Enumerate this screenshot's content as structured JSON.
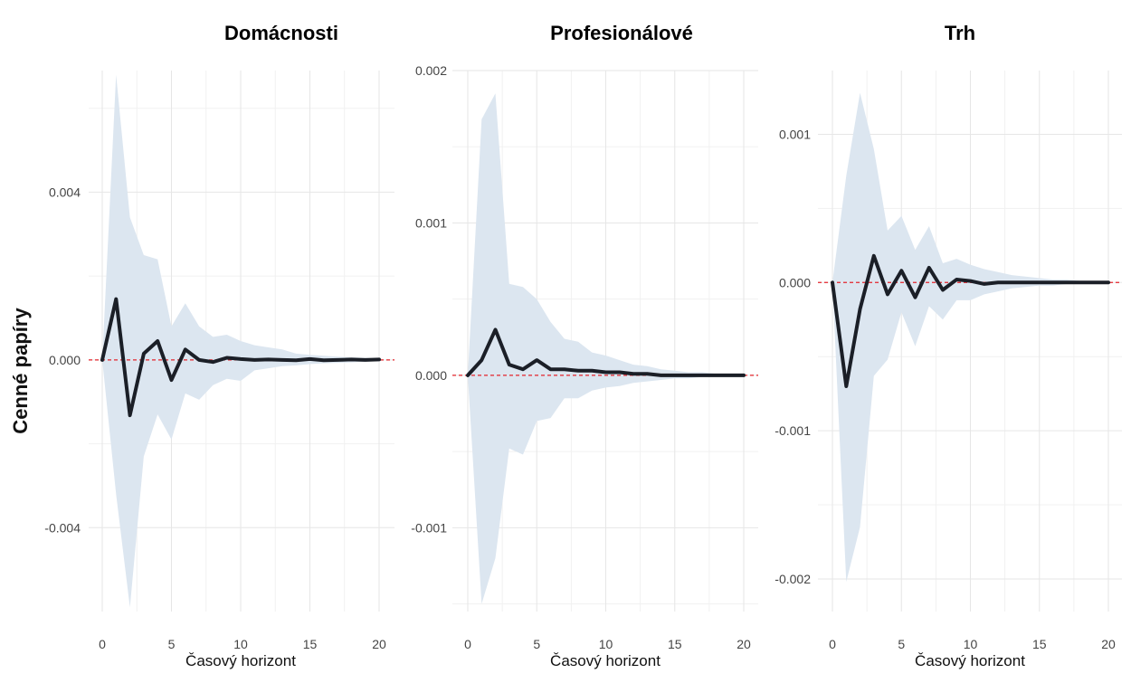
{
  "y_axis_title": "Cenné papíry",
  "chart_data": [
    {
      "type": "line",
      "title": "Domácnosti",
      "xlabel": "Časový horizont",
      "ylabel": "Cenné papíry",
      "xlim": [
        0,
        20
      ],
      "ylim": [
        -0.006,
        0.0069
      ],
      "x_ticks": [
        0,
        5,
        10,
        15,
        20
      ],
      "y_ticks": [
        -0.004,
        0.0,
        0.004
      ],
      "y_tick_labels": [
        "-0.004",
        "0.000",
        "0.004"
      ],
      "reference_line": 0,
      "x": [
        0,
        1,
        2,
        3,
        4,
        5,
        6,
        7,
        8,
        9,
        10,
        11,
        12,
        13,
        14,
        15,
        16,
        17,
        18,
        19,
        20
      ],
      "series": [
        {
          "values": [
            0.0,
            0.00145,
            -0.00132,
            0.00015,
            0.00045,
            -0.00048,
            0.00025,
            0.0,
            -5e-05,
            5e-05,
            2e-05,
            0.0,
            1e-05,
            0.0,
            -1e-05,
            2e-05,
            -1e-05,
            0.0,
            1e-05,
            0.0,
            1e-05
          ]
        },
        {
          "role": "band",
          "lower": [
            0.0,
            -0.0032,
            -0.0059,
            -0.0023,
            -0.0013,
            -0.0019,
            -0.0008,
            -0.00095,
            -0.0006,
            -0.00045,
            -0.0005,
            -0.00025,
            -0.0002,
            -0.00015,
            -0.00013,
            -0.0001,
            -8e-05,
            -7e-05,
            -6e-05,
            -4e-05,
            -3e-05
          ],
          "upper": [
            0.0,
            0.0068,
            0.0034,
            0.0025,
            0.0024,
            0.0008,
            0.00135,
            0.0008,
            0.00055,
            0.0006,
            0.00045,
            0.00035,
            0.0003,
            0.00025,
            0.00015,
            0.00012,
            0.0001,
            8e-05,
            6e-05,
            5e-05,
            4e-05
          ]
        }
      ]
    },
    {
      "type": "line",
      "title": "Profesionálové",
      "xlabel": "Časový horizont",
      "ylabel": "",
      "xlim": [
        0,
        20
      ],
      "ylim": [
        -0.00155,
        0.002
      ],
      "x_ticks": [
        0,
        5,
        10,
        15,
        20
      ],
      "y_ticks": [
        -0.001,
        0.0,
        0.001,
        0.002
      ],
      "y_tick_labels": [
        "-0.001",
        "0.000",
        "0.001",
        "0.002"
      ],
      "reference_line": 0,
      "x": [
        0,
        1,
        2,
        3,
        4,
        5,
        6,
        7,
        8,
        9,
        10,
        11,
        12,
        13,
        14,
        15,
        16,
        17,
        18,
        19,
        20
      ],
      "series": [
        {
          "values": [
            0.0,
            0.0001,
            0.0003,
            7e-05,
            4e-05,
            0.0001,
            4e-05,
            4e-05,
            3e-05,
            3e-05,
            2e-05,
            2e-05,
            1e-05,
            1e-05,
            0.0,
            0.0,
            0.0,
            0.0,
            0.0,
            0.0,
            0.0
          ]
        },
        {
          "role": "band",
          "lower": [
            0.0,
            -0.0015,
            -0.0012,
            -0.00048,
            -0.00052,
            -0.0003,
            -0.00028,
            -0.00015,
            -0.00015,
            -0.0001,
            -8e-05,
            -7e-05,
            -5e-05,
            -4e-05,
            -3e-05,
            -2e-05,
            -2e-05,
            -1e-05,
            -1e-05,
            -1e-05,
            -1e-05
          ],
          "upper": [
            0.0,
            0.00168,
            0.00185,
            0.0006,
            0.00058,
            0.0005,
            0.00035,
            0.00024,
            0.00022,
            0.00015,
            0.00013,
            0.0001,
            7e-05,
            6e-05,
            4e-05,
            3e-05,
            2e-05,
            2e-05,
            1e-05,
            1e-05,
            1e-05
          ]
        }
      ]
    },
    {
      "type": "line",
      "title": "Trh",
      "xlabel": "Časový horizont",
      "ylabel": "",
      "xlim": [
        0,
        20
      ],
      "ylim": [
        -0.00222,
        0.00143
      ],
      "x_ticks": [
        0,
        5,
        10,
        15,
        20
      ],
      "y_ticks": [
        -0.002,
        -0.001,
        0.0,
        0.001
      ],
      "y_tick_labels": [
        "-0.002",
        "-0.001",
        "0.000",
        "0.001"
      ],
      "reference_line": 0,
      "x": [
        0,
        1,
        2,
        3,
        4,
        5,
        6,
        7,
        8,
        9,
        10,
        11,
        12,
        13,
        14,
        15,
        16,
        17,
        18,
        19,
        20
      ],
      "series": [
        {
          "values": [
            0.0,
            -0.0007,
            -0.00018,
            0.00018,
            -8e-05,
            8e-05,
            -0.0001,
            0.0001,
            -5e-05,
            2e-05,
            1e-05,
            -1e-05,
            0.0,
            0.0,
            0.0,
            0.0,
            0.0,
            0.0,
            0.0,
            0.0,
            0.0
          ]
        },
        {
          "role": "band",
          "lower": [
            0.0,
            -0.00202,
            -0.00165,
            -0.00063,
            -0.00052,
            -0.0002,
            -0.00043,
            -0.00016,
            -0.00025,
            -0.00012,
            -0.00012,
            -8e-05,
            -6e-05,
            -4e-05,
            -3e-05,
            -2e-05,
            -2e-05,
            -1e-05,
            -1e-05,
            -1e-05,
            -1e-05
          ],
          "upper": [
            0.0,
            0.00072,
            0.00128,
            0.0009,
            0.00035,
            0.00045,
            0.00022,
            0.00038,
            0.00013,
            0.00016,
            0.00012,
            9e-05,
            7e-05,
            5e-05,
            4e-05,
            3e-05,
            2e-05,
            2e-05,
            1e-05,
            1e-05,
            1e-05
          ]
        }
      ]
    }
  ]
}
